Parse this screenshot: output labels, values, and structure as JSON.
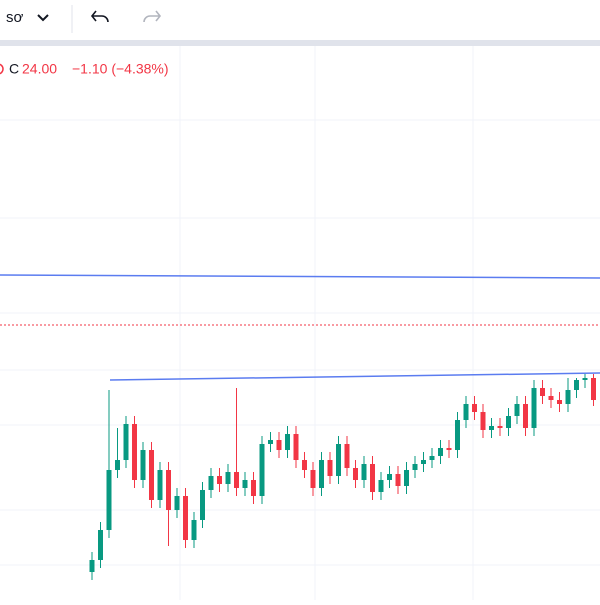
{
  "toolbar": {
    "label": "sơ"
  },
  "legend": {
    "label": "C",
    "close": "24.00",
    "change": "−1.10 (−4.38%)"
  },
  "chart_data": {
    "type": "candlestick",
    "up_color": "#089981",
    "down_color": "#f23645",
    "ylim": [
      14,
      42
    ],
    "open": [
      15.4,
      16.0,
      17.5,
      20.5,
      21.0,
      22.8,
      20.0,
      21.5,
      19.0,
      20.5,
      18.5,
      19.2,
      17.0,
      18.0,
      19.5,
      20.2,
      19.8,
      20.4,
      19.6,
      20.0,
      19.2,
      21.8,
      22.0,
      21.5,
      22.3,
      21.0,
      20.5,
      19.6,
      21.0,
      20.2,
      21.8,
      20.6,
      20.0,
      20.8,
      19.4,
      20.0,
      20.3,
      19.7,
      20.5,
      20.8,
      21.0,
      21.2,
      21.6,
      21.5,
      23.0,
      23.8,
      23.4,
      22.5,
      22.7,
      22.6,
      23.2,
      23.8,
      22.6,
      24.6,
      24.2,
      24.0,
      23.8,
      24.5,
      25.0,
      25.1
    ],
    "high": [
      16.4,
      17.9,
      24.5,
      22.6,
      23.2,
      23.2,
      21.9,
      21.9,
      20.9,
      20.9,
      19.6,
      19.6,
      18.4,
      19.9,
      20.6,
      20.6,
      20.8,
      24.6,
      20.4,
      20.4,
      22.2,
      22.4,
      22.4,
      22.7,
      22.7,
      21.4,
      20.9,
      21.4,
      21.4,
      22.2,
      22.2,
      21.0,
      21.2,
      21.2,
      20.4,
      20.7,
      20.7,
      20.9,
      21.2,
      21.4,
      21.6,
      22.0,
      22.0,
      23.4,
      24.2,
      24.2,
      23.8,
      23.1,
      23.1,
      23.6,
      24.2,
      24.2,
      25.0,
      25.0,
      24.6,
      24.4,
      25.1,
      25.1,
      25.3,
      25.3
    ],
    "low": [
      15.0,
      15.6,
      17.1,
      20.1,
      20.6,
      19.6,
      19.6,
      18.6,
      18.6,
      16.7,
      18.1,
      16.6,
      16.6,
      17.6,
      19.1,
      19.4,
      19.4,
      19.2,
      19.2,
      18.8,
      18.8,
      21.4,
      21.1,
      21.1,
      20.6,
      20.1,
      19.2,
      19.2,
      19.8,
      19.8,
      20.2,
      19.6,
      19.6,
      19.0,
      19.0,
      19.6,
      19.3,
      19.3,
      20.1,
      20.4,
      20.6,
      20.8,
      21.1,
      21.1,
      22.6,
      23.0,
      22.1,
      22.1,
      22.2,
      22.2,
      22.8,
      22.2,
      22.2,
      23.8,
      23.6,
      23.4,
      23.4,
      24.1,
      24.6,
      23.7
    ],
    "close": [
      16.0,
      17.5,
      20.5,
      21.0,
      22.8,
      20.0,
      21.5,
      19.0,
      20.5,
      18.5,
      19.2,
      17.0,
      18.0,
      19.5,
      20.2,
      19.8,
      20.4,
      19.6,
      20.0,
      19.2,
      21.8,
      22.0,
      21.5,
      22.3,
      21.0,
      20.5,
      19.6,
      21.0,
      20.2,
      21.8,
      20.6,
      20.0,
      20.8,
      19.4,
      20.0,
      20.3,
      19.7,
      20.5,
      20.8,
      21.0,
      21.2,
      21.6,
      21.5,
      23.0,
      23.8,
      23.4,
      22.5,
      22.7,
      22.6,
      23.2,
      23.8,
      22.6,
      24.6,
      24.2,
      24.0,
      23.8,
      24.5,
      25.0,
      25.1,
      24.0
    ]
  }
}
